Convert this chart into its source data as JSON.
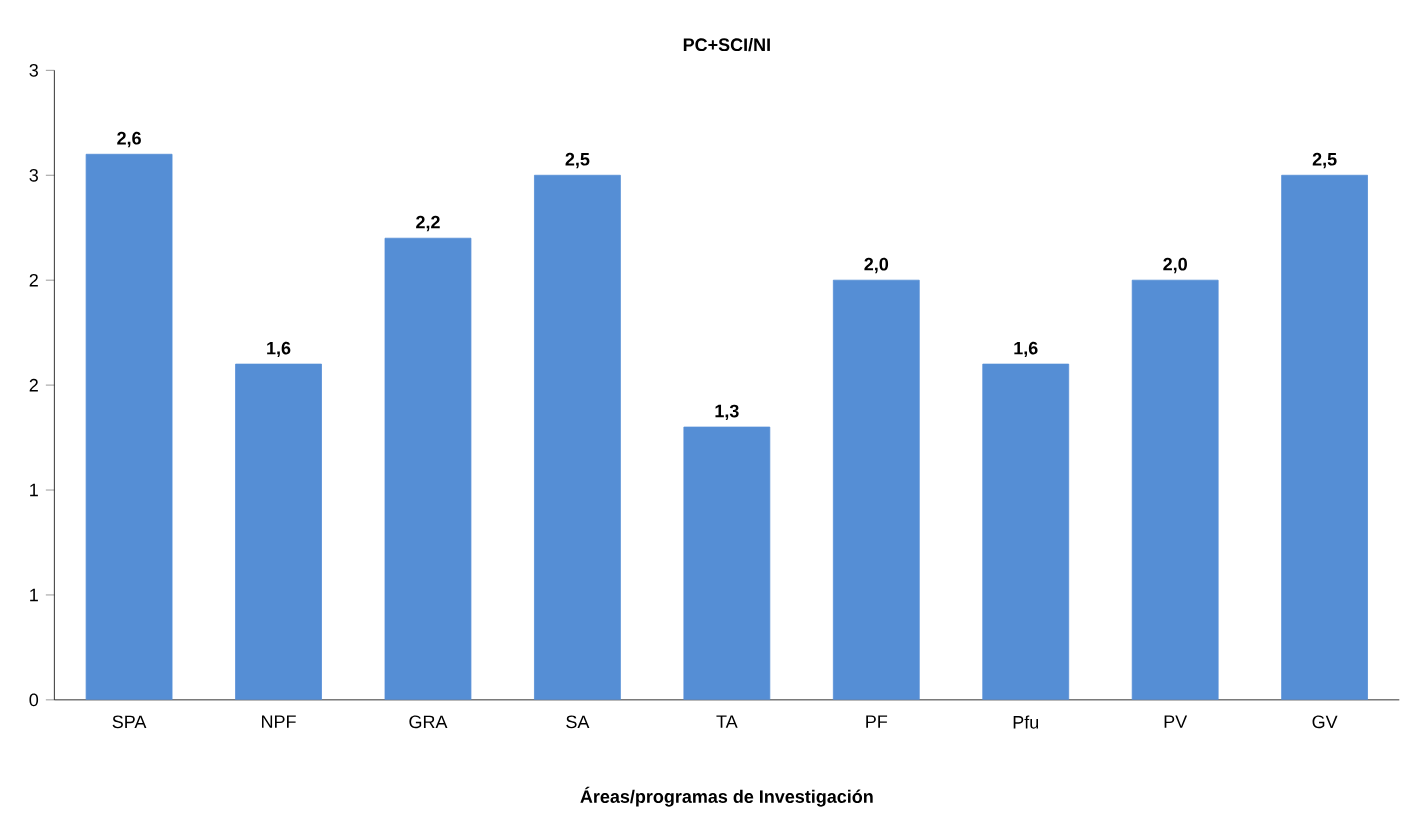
{
  "chart_data": {
    "type": "bar",
    "title": "PC+SCI/NI",
    "xlabel": "Áreas/programas de Investigación",
    "categories": [
      "SPA",
      "NPF",
      "GRA",
      "SA",
      "TA",
      "PF",
      "Pfu",
      "PV",
      "GV"
    ],
    "values": [
      2.6,
      1.6,
      2.2,
      2.5,
      1.3,
      2.0,
      1.6,
      2.0,
      2.5
    ],
    "value_labels": [
      "2,6",
      "1,6",
      "2,2",
      "2,5",
      "1,3",
      "2,0",
      "1,6",
      "2,0",
      "2,5"
    ],
    "color": "#558ed5",
    "ylim": [
      0,
      3
    ],
    "yticks": [
      0,
      {
        "value": 0.5,
        "label": "1"
      },
      1,
      {
        "value": 1.5,
        "label": "2"
      },
      2,
      {
        "value": 2.5,
        "label": "3"
      },
      3
    ],
    "grid": false
  }
}
